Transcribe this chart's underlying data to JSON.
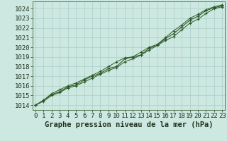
{
  "x": [
    0,
    1,
    2,
    3,
    4,
    5,
    6,
    7,
    8,
    9,
    10,
    11,
    12,
    13,
    14,
    15,
    16,
    17,
    18,
    19,
    20,
    21,
    22,
    23
  ],
  "y_main": [
    1014.0,
    1014.5,
    1015.1,
    1015.4,
    1015.9,
    1016.1,
    1016.6,
    1017.0,
    1017.3,
    1017.8,
    1018.0,
    1018.8,
    1019.0,
    1019.2,
    1019.9,
    1020.2,
    1020.9,
    1021.4,
    1022.1,
    1022.8,
    1023.2,
    1023.8,
    1024.1,
    1024.3
  ],
  "y_upper": [
    1014.0,
    1014.5,
    1015.2,
    1015.6,
    1016.0,
    1016.3,
    1016.7,
    1017.1,
    1017.5,
    1018.0,
    1018.5,
    1018.9,
    1019.0,
    1019.5,
    1020.0,
    1020.3,
    1021.0,
    1021.7,
    1022.3,
    1023.0,
    1023.4,
    1023.9,
    1024.2,
    1024.4
  ],
  "y_lower": [
    1014.0,
    1014.4,
    1015.0,
    1015.3,
    1015.8,
    1016.0,
    1016.4,
    1016.8,
    1017.2,
    1017.6,
    1017.9,
    1018.5,
    1018.8,
    1019.2,
    1019.7,
    1020.2,
    1020.7,
    1021.1,
    1021.8,
    1022.5,
    1022.9,
    1023.5,
    1024.0,
    1024.2
  ],
  "line_color": "#2d5a27",
  "bg_color": "#cce8e0",
  "grid_color": "#aacfc8",
  "border_color": "#557755",
  "xlabel": "Graphe pression niveau de la mer (hPa)",
  "ylim": [
    1013.5,
    1024.75
  ],
  "yticks": [
    1014,
    1015,
    1016,
    1017,
    1018,
    1019,
    1020,
    1021,
    1022,
    1023,
    1024
  ],
  "xticks": [
    0,
    1,
    2,
    3,
    4,
    5,
    6,
    7,
    8,
    9,
    10,
    11,
    12,
    13,
    14,
    15,
    16,
    17,
    18,
    19,
    20,
    21,
    22,
    23
  ],
  "font_size": 6.5,
  "xlabel_fontsize": 7.5,
  "marker": "+"
}
